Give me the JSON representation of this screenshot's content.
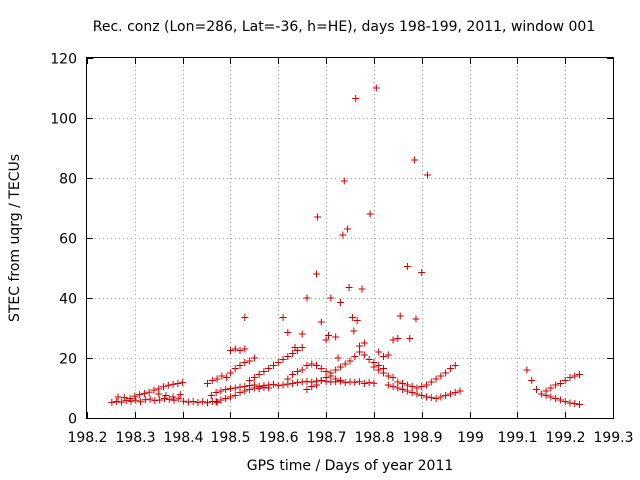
{
  "chart_data": {
    "type": "scatter",
    "title": "Rec. conz (Lon=286, Lat=-36, h=HE), days 198-199, 2011, window 001",
    "xlabel": "GPS time / Days of year 2011",
    "ylabel": "STEC from uqrg / TECUs",
    "xlim": [
      198.2,
      199.3
    ],
    "ylim": [
      0,
      120
    ],
    "xticks": [
      198.2,
      198.3,
      198.4,
      198.5,
      198.6,
      198.7,
      198.8,
      198.9,
      199,
      199.1,
      199.2,
      199.3
    ],
    "xtick_labels": [
      "198.2",
      "198.3",
      "198.4",
      "198.5",
      "198.6",
      "198.7",
      "198.8",
      "198.9",
      "199",
      "199.1",
      "199.2",
      "199.3"
    ],
    "yticks": [
      0,
      20,
      40,
      60,
      80,
      100,
      120
    ],
    "ytick_labels": [
      "0",
      "20",
      "40",
      "60",
      "80",
      "100",
      "120"
    ],
    "grid": true,
    "marker": "+",
    "color": "#cc0000",
    "series": [
      {
        "name": "STEC",
        "points": [
          [
            198.252,
            5.2
          ],
          [
            198.262,
            5.5
          ],
          [
            198.272,
            5.3
          ],
          [
            198.282,
            5.8
          ],
          [
            198.292,
            5.6
          ],
          [
            198.302,
            5.9
          ],
          [
            198.312,
            5.4
          ],
          [
            198.322,
            6.1
          ],
          [
            198.332,
            6.3
          ],
          [
            198.342,
            5.8
          ],
          [
            198.352,
            6.0
          ],
          [
            198.362,
            6.5
          ],
          [
            198.372,
            6.2
          ],
          [
            198.382,
            5.9
          ],
          [
            198.392,
            6.4
          ],
          [
            198.402,
            5.6
          ],
          [
            198.412,
            5.3
          ],
          [
            198.422,
            5.5
          ],
          [
            198.432,
            5.2
          ],
          [
            198.442,
            5.4
          ],
          [
            198.452,
            5.1
          ],
          [
            198.462,
            5.5
          ],
          [
            198.472,
            5.2
          ],
          [
            198.265,
            7.0
          ],
          [
            198.278,
            6.8
          ],
          [
            198.29,
            6.5
          ],
          [
            198.3,
            7.3
          ],
          [
            198.31,
            7.8
          ],
          [
            198.32,
            8.2
          ],
          [
            198.33,
            8.6
          ],
          [
            198.34,
            9.3
          ],
          [
            198.35,
            9.7
          ],
          [
            198.36,
            10.4
          ],
          [
            198.37,
            10.9
          ],
          [
            198.38,
            11.2
          ],
          [
            198.39,
            11.5
          ],
          [
            198.4,
            11.8
          ],
          [
            198.35,
            8.0
          ],
          [
            198.365,
            7.5
          ],
          [
            198.38,
            7.0
          ],
          [
            198.395,
            7.8
          ],
          [
            198.452,
            11.5
          ],
          [
            198.462,
            12.5
          ],
          [
            198.472,
            13.0
          ],
          [
            198.482,
            14.0
          ],
          [
            198.492,
            13.5
          ],
          [
            198.5,
            15.0
          ],
          [
            198.51,
            16.5
          ],
          [
            198.52,
            17.5
          ],
          [
            198.53,
            18.5
          ],
          [
            198.54,
            19.0
          ],
          [
            198.55,
            20.0
          ],
          [
            198.46,
            7.5
          ],
          [
            198.47,
            8.5
          ],
          [
            198.48,
            9.0
          ],
          [
            198.49,
            9.5
          ],
          [
            198.5,
            9.8
          ],
          [
            198.51,
            10.0
          ],
          [
            198.52,
            10.3
          ],
          [
            198.53,
            10.5
          ],
          [
            198.54,
            10.8
          ],
          [
            198.55,
            11.0
          ],
          [
            198.56,
            10.5
          ],
          [
            198.57,
            10.8
          ],
          [
            198.58,
            11.0
          ],
          [
            198.59,
            11.2
          ],
          [
            198.6,
            10.8
          ],
          [
            198.61,
            11.0
          ],
          [
            198.62,
            11.3
          ],
          [
            198.63,
            11.5
          ],
          [
            198.64,
            11.8
          ],
          [
            198.65,
            12.0
          ],
          [
            198.66,
            12.2
          ],
          [
            198.67,
            12.0
          ],
          [
            198.68,
            12.3
          ],
          [
            198.69,
            12.5
          ],
          [
            198.7,
            12.2
          ],
          [
            198.71,
            12.0
          ],
          [
            198.72,
            12.1
          ],
          [
            198.73,
            12.3
          ],
          [
            198.74,
            11.8
          ],
          [
            198.75,
            12.0
          ],
          [
            198.76,
            11.9
          ],
          [
            198.77,
            12.1
          ],
          [
            198.78,
            11.5
          ],
          [
            198.79,
            11.8
          ],
          [
            198.8,
            11.6
          ],
          [
            198.47,
            5.5
          ],
          [
            198.48,
            6.0
          ],
          [
            198.49,
            6.5
          ],
          [
            198.5,
            7.0
          ],
          [
            198.51,
            7.5
          ],
          [
            198.52,
            8.5
          ],
          [
            198.53,
            9.0
          ],
          [
            198.54,
            9.5
          ],
          [
            198.55,
            10.0
          ],
          [
            198.56,
            9.8
          ],
          [
            198.57,
            10.2
          ],
          [
            198.58,
            10.0
          ],
          [
            198.5,
            22.5
          ],
          [
            198.51,
            23.0
          ],
          [
            198.52,
            22.5
          ],
          [
            198.53,
            23.0
          ],
          [
            198.53,
            33.5
          ],
          [
            198.54,
            12.5
          ],
          [
            198.55,
            13.5
          ],
          [
            198.56,
            14.5
          ],
          [
            198.57,
            15.5
          ],
          [
            198.58,
            16.5
          ],
          [
            198.59,
            17.5
          ],
          [
            198.6,
            18.5
          ],
          [
            198.61,
            19.5
          ],
          [
            198.62,
            20.5
          ],
          [
            198.63,
            21.5
          ],
          [
            198.64,
            22.5
          ],
          [
            198.65,
            23.5
          ],
          [
            198.61,
            33.5
          ],
          [
            198.62,
            28.5
          ],
          [
            198.635,
            23.5
          ],
          [
            198.65,
            28.0
          ],
          [
            198.66,
            40.0
          ],
          [
            198.68,
            48.0
          ],
          [
            198.682,
            67.0
          ],
          [
            198.69,
            32.0
          ],
          [
            198.7,
            26.0
          ],
          [
            198.705,
            27.5
          ],
          [
            198.71,
            40.0
          ],
          [
            198.72,
            27.0
          ],
          [
            198.725,
            20.0
          ],
          [
            198.73,
            38.5
          ],
          [
            198.735,
            61.0
          ],
          [
            198.738,
            79.0
          ],
          [
            198.745,
            63.0
          ],
          [
            198.748,
            43.5
          ],
          [
            198.755,
            33.5
          ],
          [
            198.758,
            29.0
          ],
          [
            198.762,
            106.5
          ],
          [
            198.765,
            32.5
          ],
          [
            198.775,
            43.0
          ],
          [
            198.792,
            68.0
          ],
          [
            198.805,
            110.0
          ],
          [
            198.81,
            22.0
          ],
          [
            198.82,
            20.5
          ],
          [
            198.83,
            21.0
          ],
          [
            198.84,
            26.0
          ],
          [
            198.85,
            26.5
          ],
          [
            198.855,
            34.0
          ],
          [
            198.87,
            50.5
          ],
          [
            198.875,
            26.5
          ],
          [
            198.885,
            86.0
          ],
          [
            198.888,
            33.0
          ],
          [
            198.9,
            48.5
          ],
          [
            198.912,
            81.0
          ],
          [
            198.62,
            13.0
          ],
          [
            198.63,
            14.5
          ],
          [
            198.64,
            15.5
          ],
          [
            198.65,
            16.0
          ],
          [
            198.66,
            17.5
          ],
          [
            198.67,
            18.0
          ],
          [
            198.68,
            17.5
          ],
          [
            198.69,
            16.5
          ],
          [
            198.7,
            15.5
          ],
          [
            198.71,
            15.0
          ],
          [
            198.72,
            16.0
          ],
          [
            198.73,
            17.0
          ],
          [
            198.74,
            18.0
          ],
          [
            198.75,
            19.0
          ],
          [
            198.76,
            20.5
          ],
          [
            198.77,
            22.0
          ],
          [
            198.78,
            21.0
          ],
          [
            198.79,
            19.5
          ],
          [
            198.8,
            18.5
          ],
          [
            198.81,
            17.5
          ],
          [
            198.82,
            16.5
          ],
          [
            198.66,
            9.5
          ],
          [
            198.67,
            10.5
          ],
          [
            198.68,
            11.0
          ],
          [
            198.69,
            12.5
          ],
          [
            198.7,
            13.5
          ],
          [
            198.71,
            14.0
          ],
          [
            198.72,
            13.0
          ],
          [
            198.73,
            12.5
          ],
          [
            198.77,
            24.0
          ],
          [
            198.78,
            25.0
          ],
          [
            198.8,
            17.0
          ],
          [
            198.81,
            16.0
          ],
          [
            198.82,
            15.0
          ],
          [
            198.83,
            14.0
          ],
          [
            198.84,
            13.5
          ],
          [
            198.85,
            12.0
          ],
          [
            198.86,
            11.5
          ],
          [
            198.87,
            11.0
          ],
          [
            198.88,
            10.5
          ],
          [
            198.89,
            10.0
          ],
          [
            198.9,
            10.5
          ],
          [
            198.91,
            11.0
          ],
          [
            198.92,
            12.0
          ],
          [
            198.93,
            13.0
          ],
          [
            198.94,
            14.0
          ],
          [
            198.95,
            15.0
          ],
          [
            198.96,
            16.5
          ],
          [
            198.97,
            17.5
          ],
          [
            198.83,
            11.0
          ],
          [
            198.84,
            10.5
          ],
          [
            198.85,
            10.0
          ],
          [
            198.86,
            9.5
          ],
          [
            198.87,
            9.0
          ],
          [
            198.88,
            8.5
          ],
          [
            198.89,
            8.0
          ],
          [
            198.9,
            7.5
          ],
          [
            198.91,
            7.0
          ],
          [
            198.92,
            6.8
          ],
          [
            198.93,
            6.5
          ],
          [
            198.94,
            7.0
          ],
          [
            198.95,
            7.5
          ],
          [
            198.96,
            8.0
          ],
          [
            198.97,
            8.5
          ],
          [
            198.98,
            9.0
          ],
          [
            199.12,
            16.0
          ],
          [
            199.13,
            12.5
          ],
          [
            199.14,
            9.5
          ],
          [
            199.15,
            8.0
          ],
          [
            199.16,
            7.5
          ],
          [
            199.17,
            7.0
          ],
          [
            199.18,
            6.5
          ],
          [
            199.19,
            6.0
          ],
          [
            199.2,
            5.5
          ],
          [
            199.21,
            5.0
          ],
          [
            199.22,
            4.8
          ],
          [
            199.23,
            4.5
          ],
          [
            199.16,
            9.0
          ],
          [
            199.17,
            10.0
          ],
          [
            199.18,
            11.0
          ],
          [
            199.19,
            11.5
          ],
          [
            199.2,
            12.5
          ],
          [
            199.21,
            13.5
          ],
          [
            199.22,
            14.0
          ],
          [
            199.23,
            14.5
          ]
        ]
      }
    ]
  }
}
